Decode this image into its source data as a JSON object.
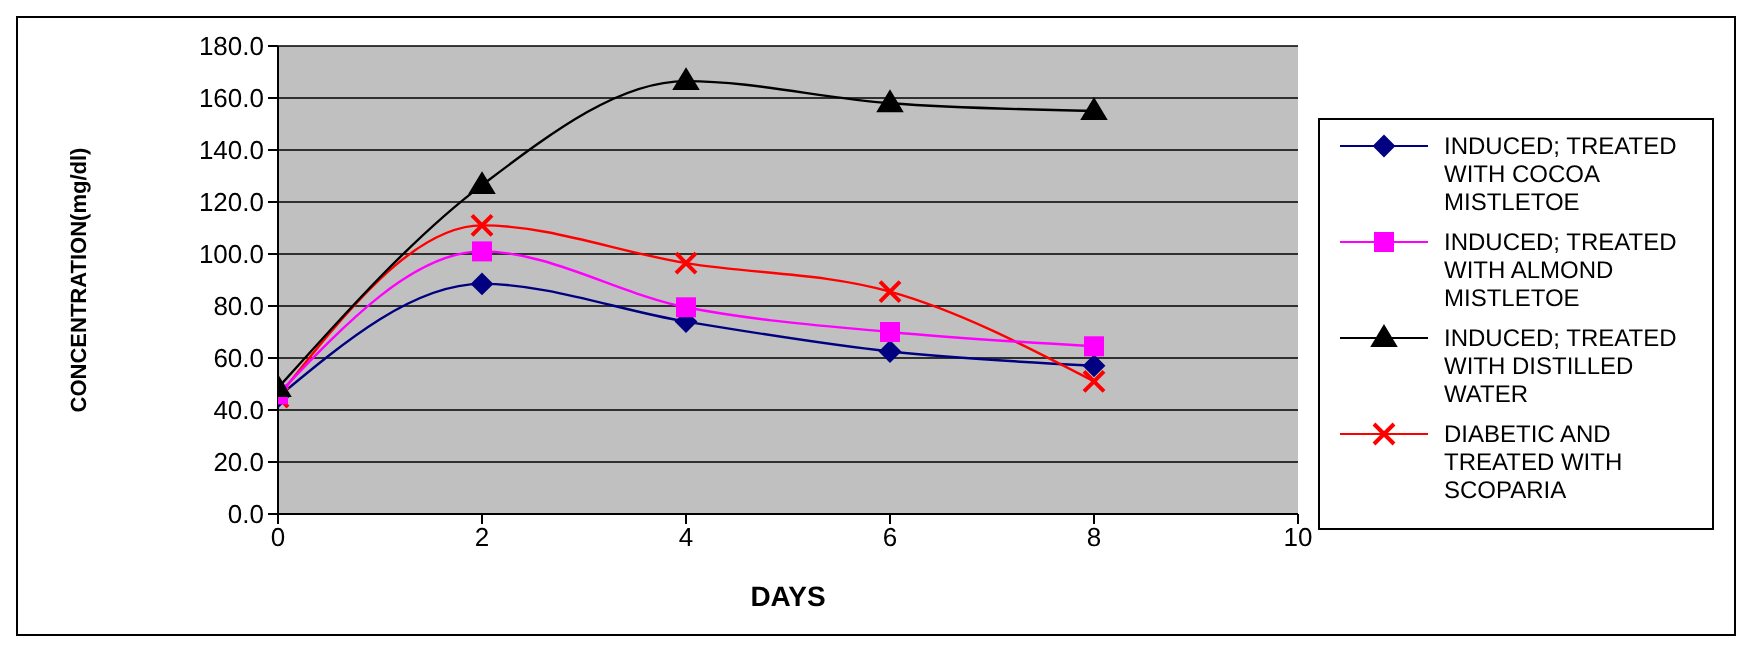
{
  "chart_data": {
    "type": "line",
    "xlabel": "DAYS",
    "ylabel": "CONCENTRATION(mg/dl)",
    "x": [
      0,
      2,
      4,
      6,
      8
    ],
    "xlim": [
      0,
      10
    ],
    "xticks": [
      0,
      2,
      4,
      6,
      8,
      10
    ],
    "ylim": [
      0,
      180
    ],
    "yticks": [
      {
        "value": 0,
        "label": "0.0"
      },
      {
        "value": 20,
        "label": "20.0"
      },
      {
        "value": 40,
        "label": "40.0"
      },
      {
        "value": 60,
        "label": "60.0"
      },
      {
        "value": 80,
        "label": "80.0"
      },
      {
        "value": 100,
        "label": "100.0"
      },
      {
        "value": 120,
        "label": "120.0"
      },
      {
        "value": 140,
        "label": "140.0"
      },
      {
        "value": 160,
        "label": "160.0"
      },
      {
        "value": 180,
        "label": "180.0"
      }
    ],
    "grid": "y",
    "legend": "right",
    "series": [
      {
        "name": "INDUCED; TREATED WITH COCOA MISTLETOE",
        "color": "#000080",
        "marker": "diamond",
        "values": [
          45,
          88.5,
          74,
          62.5,
          57
        ]
      },
      {
        "name": "INDUCED; TREATED WITH ALMOND MISTLETOE",
        "color": "#ff00ff",
        "marker": "square",
        "values": [
          46,
          101,
          79.5,
          70,
          64.5
        ]
      },
      {
        "name": "INDUCED; TREATED WITH DISTILLED WATER",
        "color": "#000000",
        "marker": "triangle",
        "values": [
          48.5,
          126.5,
          166.5,
          158,
          155
        ]
      },
      {
        "name": "DIABETIC AND TREATED WITH SCOPARIA",
        "color": "#ff0000",
        "marker": "cross",
        "values": [
          45,
          111,
          96.5,
          85.5,
          51
        ]
      }
    ]
  }
}
